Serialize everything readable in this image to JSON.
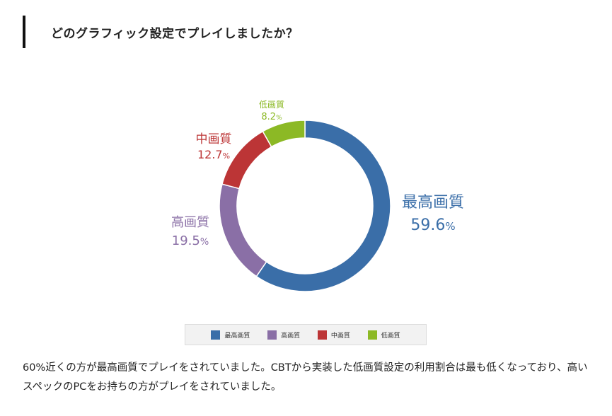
{
  "heading": "どのグラフィック設定でプレイしましたか？",
  "chart_data": {
    "type": "pie",
    "variant": "donut",
    "categories": [
      "最高画質",
      "高画質",
      "中画質",
      "低画質"
    ],
    "values": [
      59.6,
      19.5,
      12.7,
      8.2
    ],
    "value_suffix": "%",
    "colors": [
      "#3a6ea8",
      "#8a6fa6",
      "#bc3536",
      "#8cb925"
    ],
    "legend": {
      "placement": "bottom",
      "items": [
        "最高画質",
        "高画質",
        "中画質",
        "低画質"
      ]
    },
    "title": "",
    "xlabel": "",
    "ylabel": ""
  },
  "body_text": "60%近くの方が最高画質でプレイをされていました。CBTから実装した低画質設定の利用割合は最も低くなっており、高いスペックのPCをお持ちの方がプレイをされていました。"
}
